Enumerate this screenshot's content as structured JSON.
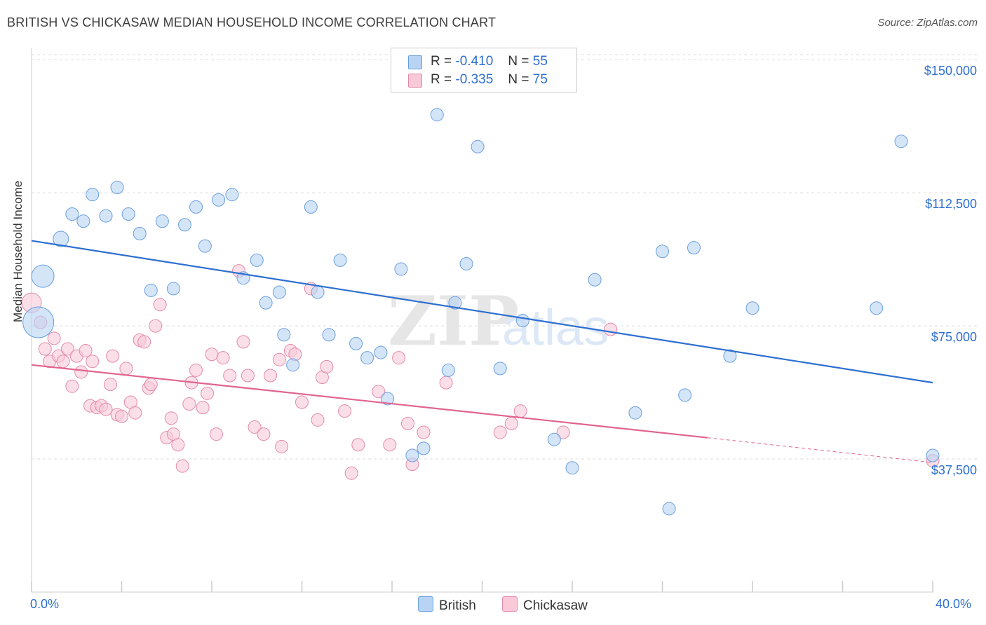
{
  "header": {
    "title": "BRITISH VS CHICKASAW MEDIAN HOUSEHOLD INCOME CORRELATION CHART",
    "source": "Source: ZipAtlas.com"
  },
  "legend": {
    "british": {
      "r_label": "R =",
      "r_value": "-0.410",
      "n_label": "N =",
      "n_value": "55"
    },
    "chickasaw": {
      "r_label": "R =",
      "r_value": "-0.335",
      "n_label": "N =",
      "n_value": "75"
    }
  },
  "colors": {
    "british_fill": "#b8d3f4",
    "british_stroke": "#6a9fdf",
    "british_line": "#2d6fd0",
    "chickasaw_fill": "#f9c9d8",
    "chickasaw_stroke": "#e48aa8",
    "chickasaw_line": "#e0648f",
    "grid": "#dddddd",
    "tick_label": "#2d6fd0"
  },
  "chart_data": {
    "type": "scatter",
    "title": "BRITISH VS CHICKASAW MEDIAN HOUSEHOLD INCOME CORRELATION CHART",
    "xlabel": "",
    "ylabel": "Median Household Income",
    "xlim": [
      0,
      40
    ],
    "ylim": [
      0,
      153000
    ],
    "x_tick_labels": [
      "0.0%",
      "40.0%"
    ],
    "y_ticks": [
      37500,
      75000,
      112500,
      150000
    ],
    "y_tick_labels": [
      "$37,500",
      "$75,000",
      "$112,500",
      "$150,000"
    ],
    "grid": true,
    "legend_position": "top-center",
    "watermark": "ZIPatlas",
    "series": [
      {
        "name": "British",
        "trend": {
          "x": [
            0,
            40
          ],
          "y": [
            99000,
            59000
          ]
        },
        "points": [
          [
            0.3,
            76000,
            22
          ],
          [
            0.5,
            89000,
            16
          ],
          [
            1.3,
            99500,
            11
          ],
          [
            1.8,
            106500,
            9
          ],
          [
            2.3,
            104500,
            9
          ],
          [
            2.7,
            112000,
            9
          ],
          [
            3.3,
            106000,
            9
          ],
          [
            3.8,
            114000,
            9
          ],
          [
            4.3,
            106500,
            9
          ],
          [
            4.8,
            101000,
            9
          ],
          [
            5.3,
            85000,
            9
          ],
          [
            5.8,
            104500,
            9
          ],
          [
            6.3,
            85500,
            9
          ],
          [
            6.8,
            103500,
            9
          ],
          [
            7.3,
            108500,
            9
          ],
          [
            7.7,
            97500,
            9
          ],
          [
            8.3,
            110500,
            9
          ],
          [
            8.9,
            112000,
            9
          ],
          [
            9.4,
            88500,
            9
          ],
          [
            10.0,
            93500,
            9
          ],
          [
            10.4,
            81500,
            9
          ],
          [
            11.0,
            84500,
            9
          ],
          [
            11.2,
            72500,
            9
          ],
          [
            11.6,
            64000,
            9
          ],
          [
            12.4,
            108500,
            9
          ],
          [
            12.7,
            84500,
            9
          ],
          [
            13.2,
            72500,
            9
          ],
          [
            13.7,
            93500,
            9
          ],
          [
            14.4,
            70000,
            9
          ],
          [
            14.9,
            66000,
            9
          ],
          [
            15.5,
            67500,
            9
          ],
          [
            15.8,
            54500,
            9
          ],
          [
            16.4,
            91000,
            9
          ],
          [
            16.9,
            38500,
            9
          ],
          [
            17.4,
            40500,
            9
          ],
          [
            18.0,
            134500,
            9
          ],
          [
            18.5,
            62500,
            9
          ],
          [
            18.8,
            81500,
            9
          ],
          [
            19.3,
            92500,
            9
          ],
          [
            19.8,
            125500,
            9
          ],
          [
            20.8,
            63000,
            9
          ],
          [
            21.8,
            76500,
            9
          ],
          [
            23.2,
            43000,
            9
          ],
          [
            24.0,
            35000,
            9
          ],
          [
            25.0,
            88000,
            9
          ],
          [
            26.8,
            50500,
            9
          ],
          [
            28.0,
            96000,
            9
          ],
          [
            28.3,
            23500,
            9
          ],
          [
            29.0,
            55500,
            9
          ],
          [
            29.4,
            97000,
            9
          ],
          [
            31.0,
            66500,
            9
          ],
          [
            32.0,
            80000,
            9
          ],
          [
            37.5,
            80000,
            9
          ],
          [
            38.6,
            127000,
            9
          ],
          [
            40.0,
            38500,
            9
          ]
        ]
      },
      {
        "name": "Chickasaw",
        "trend": {
          "x": [
            0,
            30
          ],
          "y": [
            64000,
            43500
          ]
        },
        "trend_dashed": {
          "x": [
            30,
            40
          ],
          "y": [
            43500,
            36500
          ]
        },
        "points": [
          [
            0.0,
            81500,
            14
          ],
          [
            0.4,
            76000,
            9
          ],
          [
            0.6,
            68500,
            9
          ],
          [
            0.8,
            65000,
            9
          ],
          [
            1.0,
            71500,
            9
          ],
          [
            1.2,
            66500,
            9
          ],
          [
            1.4,
            65000,
            9
          ],
          [
            1.6,
            68500,
            9
          ],
          [
            1.8,
            58000,
            9
          ],
          [
            2.0,
            66500,
            9
          ],
          [
            2.2,
            62000,
            9
          ],
          [
            2.4,
            68000,
            9
          ],
          [
            2.6,
            52500,
            9
          ],
          [
            2.7,
            65000,
            9
          ],
          [
            2.9,
            52000,
            9
          ],
          [
            3.1,
            52500,
            9
          ],
          [
            3.3,
            51500,
            9
          ],
          [
            3.5,
            58500,
            9
          ],
          [
            3.6,
            66500,
            9
          ],
          [
            3.8,
            50000,
            9
          ],
          [
            4.0,
            49500,
            9
          ],
          [
            4.2,
            63000,
            9
          ],
          [
            4.4,
            53500,
            9
          ],
          [
            4.6,
            50500,
            9
          ],
          [
            4.8,
            71000,
            9
          ],
          [
            5.0,
            70500,
            9
          ],
          [
            5.2,
            57500,
            9
          ],
          [
            5.3,
            58500,
            9
          ],
          [
            5.5,
            75000,
            9
          ],
          [
            5.7,
            81000,
            9
          ],
          [
            6.0,
            43500,
            9
          ],
          [
            6.2,
            49000,
            9
          ],
          [
            6.3,
            44500,
            9
          ],
          [
            6.5,
            41500,
            9
          ],
          [
            6.7,
            35500,
            9
          ],
          [
            7.0,
            53000,
            9
          ],
          [
            7.1,
            59000,
            9
          ],
          [
            7.3,
            62500,
            9
          ],
          [
            7.6,
            52000,
            9
          ],
          [
            7.8,
            56000,
            9
          ],
          [
            8.0,
            67000,
            9
          ],
          [
            8.2,
            44500,
            9
          ],
          [
            8.5,
            66000,
            9
          ],
          [
            8.8,
            61000,
            9
          ],
          [
            9.2,
            90500,
            9
          ],
          [
            9.4,
            70500,
            9
          ],
          [
            9.6,
            61000,
            9
          ],
          [
            9.9,
            46500,
            9
          ],
          [
            10.3,
            44500,
            9
          ],
          [
            10.6,
            61000,
            9
          ],
          [
            11.0,
            65500,
            9
          ],
          [
            11.1,
            41000,
            9
          ],
          [
            11.5,
            68000,
            9
          ],
          [
            11.7,
            67000,
            9
          ],
          [
            12.0,
            53500,
            9
          ],
          [
            12.4,
            85500,
            9
          ],
          [
            12.7,
            48500,
            9
          ],
          [
            12.9,
            60500,
            9
          ],
          [
            13.1,
            63500,
            9
          ],
          [
            13.9,
            51000,
            9
          ],
          [
            14.2,
            33500,
            9
          ],
          [
            14.5,
            41500,
            9
          ],
          [
            15.4,
            56500,
            9
          ],
          [
            15.9,
            41500,
            9
          ],
          [
            16.3,
            66000,
            9
          ],
          [
            16.7,
            47500,
            9
          ],
          [
            16.9,
            36000,
            9
          ],
          [
            17.4,
            45000,
            9
          ],
          [
            18.4,
            59000,
            9
          ],
          [
            20.8,
            45000,
            9
          ],
          [
            21.3,
            47500,
            9
          ],
          [
            21.7,
            51000,
            9
          ],
          [
            23.6,
            45000,
            9
          ],
          [
            25.7,
            74000,
            9
          ],
          [
            40.0,
            37000,
            9
          ]
        ]
      }
    ]
  },
  "axis": {
    "x_left_label": "0.0%",
    "x_right_label": "40.0%",
    "y_label": "Median Household Income"
  },
  "bottom_legend": {
    "british": "British",
    "chickasaw": "Chickasaw"
  }
}
